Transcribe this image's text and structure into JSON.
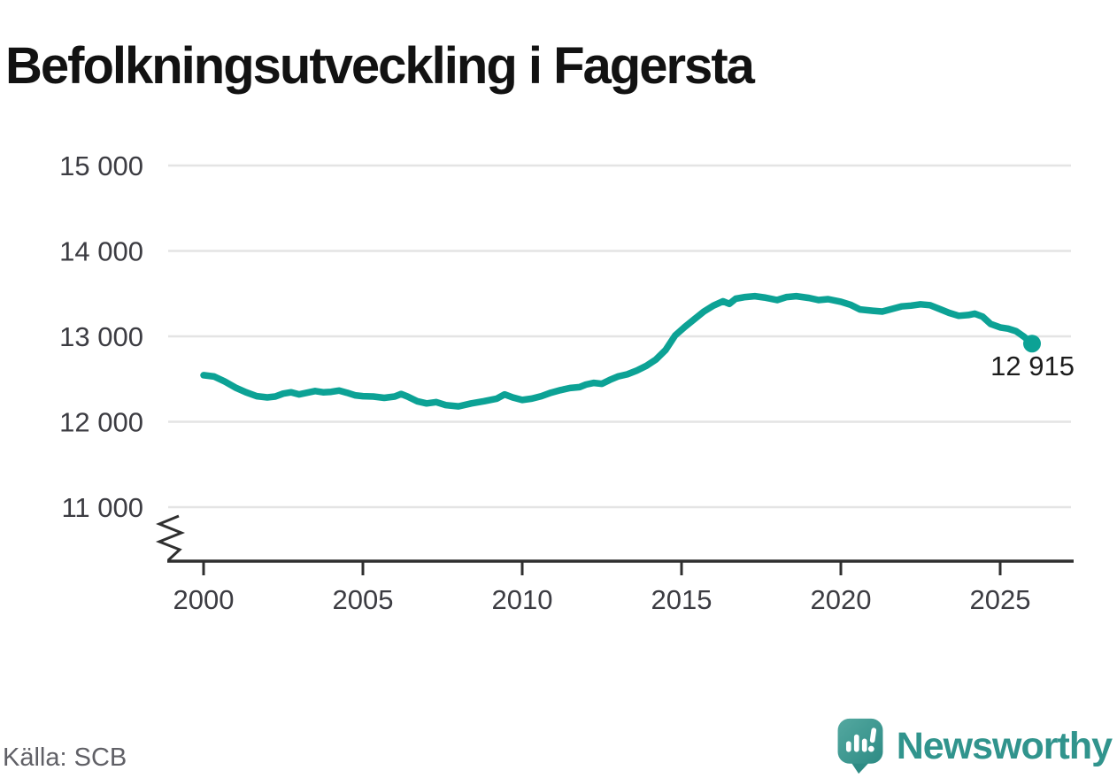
{
  "title": "Befolkningsutveckling i Fagersta",
  "source": "Källa: SCB",
  "logo": {
    "brand": "Newsworthy",
    "mark": "bar-chart-speech-bubble-icon"
  },
  "colors": {
    "line": "#0ca295",
    "grid": "#e4e4e4",
    "axis": "#2f2f2f",
    "tick_text": "#3c3c42",
    "title_text": "#121212",
    "source_text": "#606066",
    "brand_teal": "#31948d",
    "annotation_text": "#1c1c1c"
  },
  "chart_data": {
    "type": "line",
    "title": "Befolkningsutveckling i Fagersta",
    "xlabel": "",
    "ylabel": "",
    "grid": true,
    "legend": false,
    "axis_break": true,
    "ylim": [
      11000,
      15000
    ],
    "xlim": [
      1999,
      2027.3
    ],
    "y_ticks": [
      {
        "value": 15000,
        "label": "15 000"
      },
      {
        "value": 14000,
        "label": "14 000"
      },
      {
        "value": 13000,
        "label": "13 000"
      },
      {
        "value": 12000,
        "label": "12 000"
      },
      {
        "value": 11000,
        "label": "11 000"
      }
    ],
    "x_ticks": [
      {
        "value": 2000,
        "label": "2000"
      },
      {
        "value": 2005,
        "label": "2005"
      },
      {
        "value": 2010,
        "label": "2010"
      },
      {
        "value": 2015,
        "label": "2015"
      },
      {
        "value": 2020,
        "label": "2020"
      },
      {
        "value": 2025,
        "label": "2025"
      }
    ],
    "x": [
      2000.0,
      2000.33,
      2000.67,
      2001.0,
      2001.33,
      2001.67,
      2002.0,
      2002.25,
      2002.5,
      2002.75,
      2003.0,
      2003.25,
      2003.5,
      2003.75,
      2004.0,
      2004.25,
      2004.5,
      2004.75,
      2005.0,
      2005.33,
      2005.67,
      2006.0,
      2006.2,
      2006.4,
      2006.7,
      2007.0,
      2007.3,
      2007.6,
      2008.0,
      2008.4,
      2008.8,
      2009.2,
      2009.45,
      2009.7,
      2010.0,
      2010.3,
      2010.6,
      2010.9,
      2011.2,
      2011.5,
      2011.8,
      2012.0,
      2012.25,
      2012.5,
      2012.75,
      2013.0,
      2013.3,
      2013.6,
      2013.9,
      2014.2,
      2014.5,
      2014.8,
      2015.1,
      2015.4,
      2015.7,
      2016.0,
      2016.3,
      2016.5,
      2016.7,
      2017.0,
      2017.3,
      2017.6,
      2018.0,
      2018.3,
      2018.6,
      2019.0,
      2019.3,
      2019.6,
      2020.0,
      2020.3,
      2020.6,
      2021.0,
      2021.3,
      2021.6,
      2021.9,
      2022.2,
      2022.5,
      2022.8,
      2023.1,
      2023.4,
      2023.7,
      2024.0,
      2024.2,
      2024.45,
      2024.7,
      2025.0,
      2025.25,
      2025.5,
      2025.75,
      2026.0
    ],
    "values": [
      12545,
      12530,
      12470,
      12400,
      12345,
      12300,
      12285,
      12295,
      12330,
      12345,
      12320,
      12340,
      12360,
      12345,
      12350,
      12365,
      12340,
      12310,
      12300,
      12295,
      12280,
      12295,
      12325,
      12295,
      12240,
      12215,
      12230,
      12195,
      12180,
      12215,
      12240,
      12270,
      12320,
      12285,
      12255,
      12270,
      12300,
      12340,
      12370,
      12395,
      12405,
      12435,
      12455,
      12445,
      12490,
      12530,
      12555,
      12600,
      12655,
      12730,
      12840,
      13010,
      13110,
      13200,
      13290,
      13360,
      13410,
      13380,
      13440,
      13460,
      13470,
      13455,
      13425,
      13460,
      13470,
      13450,
      13425,
      13435,
      13405,
      13370,
      13315,
      13300,
      13290,
      13320,
      13350,
      13360,
      13375,
      13365,
      13320,
      13275,
      13240,
      13250,
      13265,
      13230,
      13145,
      13105,
      13090,
      13060,
      12995,
      12915
    ],
    "end_annotation": {
      "label": "12 915",
      "x": 2026.0,
      "value": 12915
    }
  }
}
